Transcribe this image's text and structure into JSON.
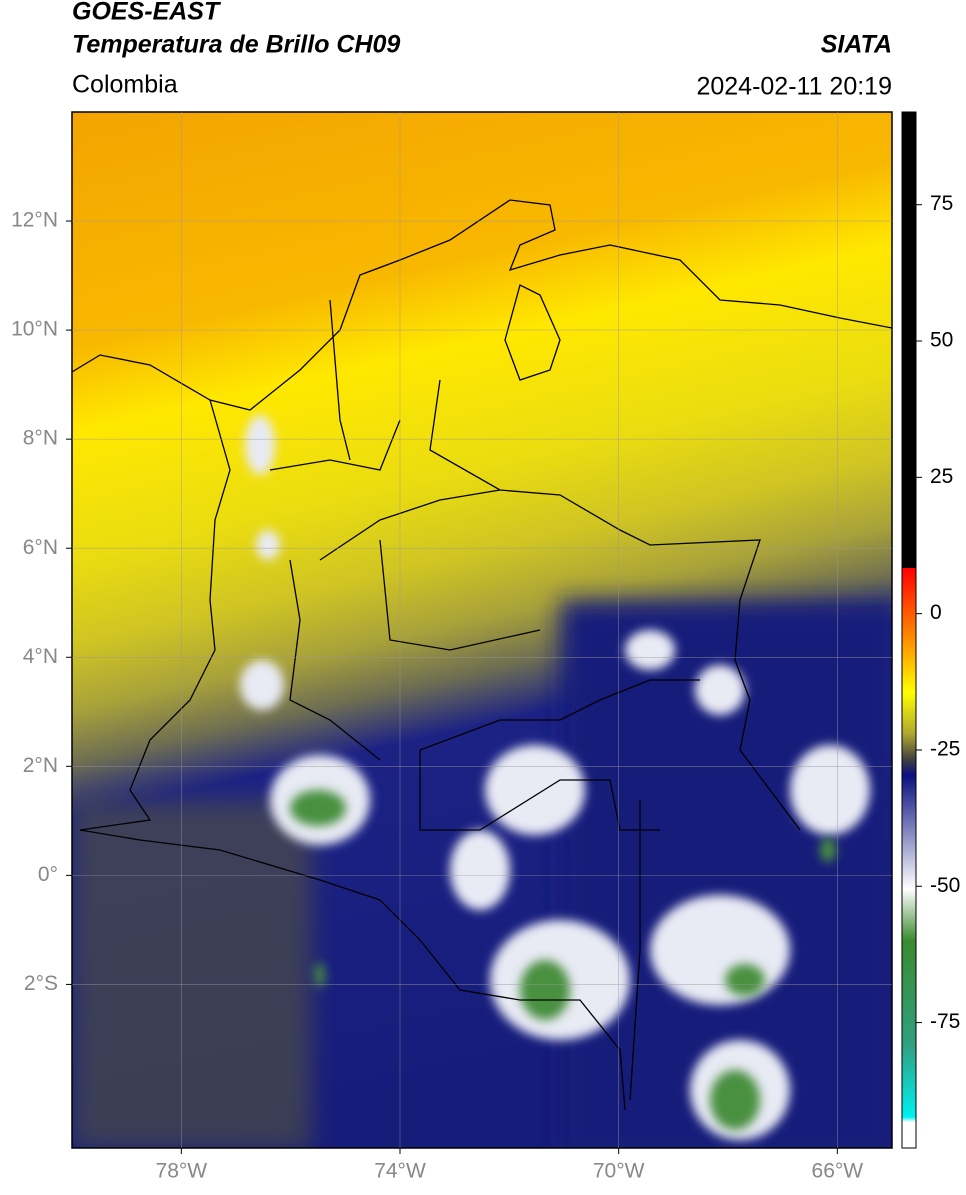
{
  "header": {
    "title": "GOES-EAST",
    "subtitle": "Temperatura de Brillo CH09",
    "source": "SIATA",
    "region": "Colombia",
    "datetime": "2024-02-11 20:19"
  },
  "map": {
    "lon_range": [
      -80,
      -65
    ],
    "lat_range": [
      -5,
      14
    ],
    "lon_ticks": [
      {
        "value": -78,
        "label": "78°W"
      },
      {
        "value": -74,
        "label": "74°W"
      },
      {
        "value": -70,
        "label": "70°W"
      },
      {
        "value": -66,
        "label": "66°W"
      }
    ],
    "lat_ticks": [
      {
        "value": 12,
        "label": "12°N"
      },
      {
        "value": 10,
        "label": "10°N"
      },
      {
        "value": 8,
        "label": "8°N"
      },
      {
        "value": 6,
        "label": "6°N"
      },
      {
        "value": 4,
        "label": "4°N"
      },
      {
        "value": 2,
        "label": "2°N"
      },
      {
        "value": 0,
        "label": "0°"
      },
      {
        "value": -2,
        "label": "2°S"
      }
    ]
  },
  "colorbar": {
    "range": [
      -98,
      92
    ],
    "ticks": [
      75,
      50,
      25,
      0,
      -25,
      -50,
      -75
    ]
  }
}
